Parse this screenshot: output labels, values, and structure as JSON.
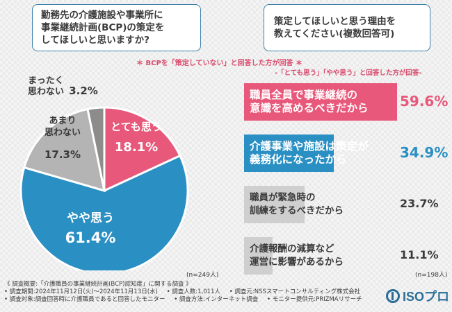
{
  "q1": {
    "text": "勤務先の介護施設や事業所に\n事業継続計画(BCP)の策定を\nしてほしいと思いますか?"
  },
  "q2": {
    "text": "策定してほしいと思う理由を\n教えてください(複数回答可)"
  },
  "note_pie": "＊ BCPを「策定していない」と回答した方が回答 ＊",
  "note_bar": "-「とても思う」「やや思う」と回答した方が回答-",
  "n_pie": "(n=249人)",
  "n_bar": "(n=198人)",
  "chart_data": [
    {
      "type": "pie",
      "slices": [
        {
          "label": "とても思う",
          "value": 18.1,
          "value_text": "18.1%",
          "color": "#e8587a"
        },
        {
          "label": "やや思う",
          "value": 61.4,
          "value_text": "61.4%",
          "color": "#2a8fc3"
        },
        {
          "label": "あまり\n思わない",
          "value": 17.3,
          "value_text": "17.3%",
          "color": "#b4b4b4"
        },
        {
          "label": "まったく\n思わない",
          "value": 3.2,
          "value_text": "3.2%",
          "color": "#8c8c8c"
        }
      ]
    },
    {
      "type": "bar",
      "orientation": "horizontal",
      "categories": [
        "職員全員で事業継続の\n意識を高めるべきだから",
        "介護事業や施設は策定が\n義務化になったから",
        "職員が緊急時の\n訓練をするべきだから",
        "介護報酬の減算など\n運営に影響があるから"
      ],
      "values": [
        59.6,
        34.9,
        23.7,
        11.1
      ],
      "value_texts": [
        "59.6%",
        "34.9%",
        "23.7%",
        "11.1%"
      ],
      "colors": [
        "#e8587a",
        "#2a8fc3",
        "#cfcfcf",
        "#cfcfcf"
      ]
    }
  ],
  "footer": {
    "line1": "《 調査概要:「介護職員の事業継続計画(BCP)認知度」に関する調査 》",
    "line2_a": "• 調査期間:2024年11月12日(火)〜2024年11月13日(水)",
    "line2_b": "• 調査人数:1,011人",
    "line2_c": "• 調査元:NSSスマートコンサルティング株式会社",
    "line3_a": "• 調査対象:調査回答時に介護職員であると回答したモニター",
    "line3_b": "• 調査方法:インターネット調査",
    "line3_c": "• モニター提供元:PRIZMAリサーチ"
  },
  "logo": {
    "text": "ISOプロ",
    "color": "#2a6e98"
  }
}
